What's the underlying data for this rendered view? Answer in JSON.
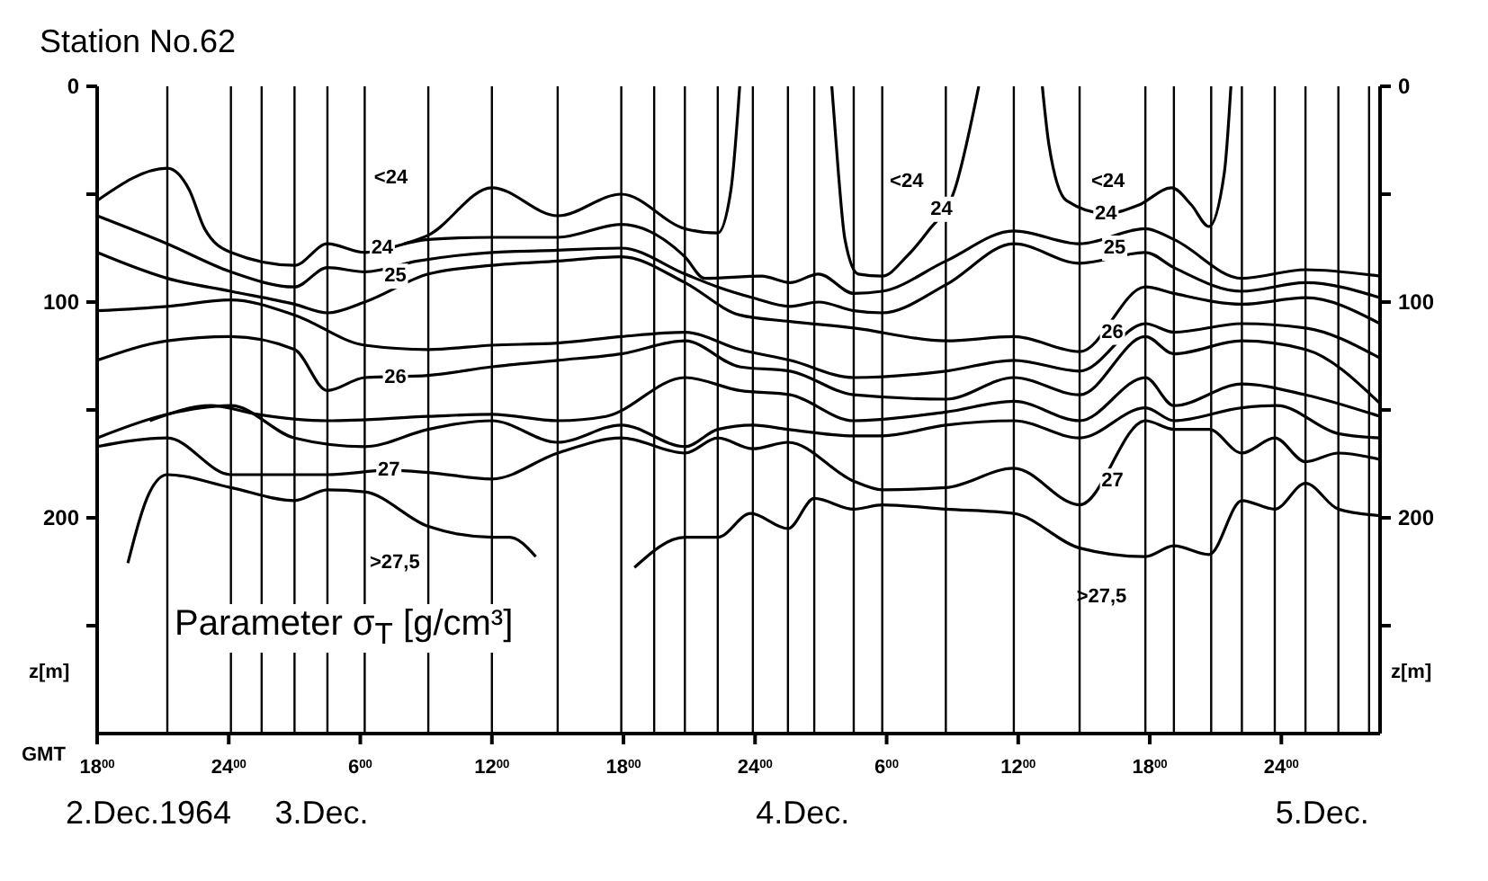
{
  "chart_data": {
    "type": "line",
    "title": "Station No.62",
    "xlabel": "GMT",
    "ylabel": "z[m]",
    "y2label": "z[m]",
    "marker": "none",
    "line_style": "solid",
    "xlim": [
      "1964-12-02T18:00",
      "1964-12-05T04:30"
    ],
    "xticks": [
      {
        "value": "1964-12-02T18:00",
        "label": "18$^{00}$"
      },
      {
        "value": "1964-12-03T00:00",
        "label": "24$^{00}$"
      },
      {
        "value": "1964-12-03T06:00",
        "label": "6$^{00}$"
      },
      {
        "value": "1964-12-03T12:00",
        "label": "12$^{00}$"
      },
      {
        "value": "1964-12-03T18:00",
        "label": "18$^{00}$"
      },
      {
        "value": "1964-12-04T00:00",
        "label": "24$^{00}$"
      },
      {
        "value": "1964-12-04T06:00",
        "label": "6$^{00}$"
      },
      {
        "value": "1964-12-04T12:00",
        "label": "12$^{00}$"
      },
      {
        "value": "1964-12-04T18:00",
        "label": "18$^{00}$"
      },
      {
        "value": "1964-12-05T00:00",
        "label": "24$^{00}$"
      }
    ],
    "ylim": [
      300,
      0
    ],
    "yticks": [
      0,
      {
        "value": 50,
        "label": null
      },
      100,
      {
        "value": 150,
        "label": null
      },
      200,
      {
        "value": 250,
        "label": null
      }
    ],
    "y2lim": [
      300,
      0
    ],
    "y2ticks": [
      0,
      {
        "value": 50,
        "label": null
      },
      100,
      {
        "value": 150,
        "label": null
      },
      200,
      {
        "value": 250,
        "label": null
      }
    ],
    "series": [
      {
        "color": "#000000",
        "x": [
          "1964-12-02T18:00",
          "1964-12-02T21:12",
          "1964-12-02T22:12",
          "1964-12-02T22:54",
          "1964-12-03T00:06",
          "1964-12-03T03:00",
          "1964-12-03T04:30",
          "1964-12-03T06:12",
          "1964-12-03T08:00",
          "1964-12-03T09:06",
          "1964-12-03T12:00",
          "1964-12-03T15:00",
          "1964-12-03T17:54",
          "1964-12-03T20:48",
          "1964-12-03T22:18",
          "1964-12-03T22:54",
          "1964-12-03T23:18"
        ],
        "values": [
          53,
          38,
          48,
          66,
          77,
          83,
          73,
          77,
          73,
          69,
          47,
          60,
          50,
          66,
          68,
          48,
          0
        ]
      },
      {
        "color": "#000000",
        "x": [
          "1964-12-04T03:30",
          "1964-12-04T03:48",
          "1964-12-04T04:06",
          "1964-12-04T04:42",
          "1964-12-04T05:48",
          "1964-12-04T06:54",
          "1964-12-04T07:54",
          "1964-12-04T09:06",
          "1964-12-04T10:12"
        ],
        "values": [
          0,
          40,
          71,
          87,
          88,
          79,
          67,
          48,
          0
        ]
      },
      {
        "color": "#000000",
        "x": [
          "1964-12-04T13:06",
          "1964-12-04T13:24",
          "1964-12-04T14:12",
          "1964-12-04T16:00",
          "1964-12-04T17:30",
          "1964-12-04T19:00",
          "1964-12-04T19:54",
          "1964-12-04T20:42",
          "1964-12-04T21:24",
          "1964-12-04T21:42"
        ],
        "values": [
          0,
          27,
          53,
          59,
          55,
          47,
          55,
          65,
          40,
          0
        ]
      },
      {
        "color": "#000000",
        "x": [
          "1964-12-03T08:00",
          "1964-12-03T09:06",
          "1964-12-03T12:00",
          "1964-12-03T15:00",
          "1964-12-03T17:54",
          "1964-12-03T20:48",
          "1964-12-03T21:42",
          "1964-12-04T00:18",
          "1964-12-04T01:36",
          "1964-12-04T02:54",
          "1964-12-04T04:30",
          "1964-12-04T05:48",
          "1964-12-04T08:42",
          "1964-12-04T11:48",
          "1964-12-04T14:48",
          "1964-12-04T17:48",
          "1964-12-04T19:06",
          "1964-12-04T22:12",
          "1964-12-05T01:06",
          "1964-12-05T04:30"
        ],
        "values": [
          73,
          71,
          70,
          70,
          64,
          79,
          89,
          88,
          91,
          87,
          96,
          95,
          81,
          67,
          73,
          66,
          71,
          89,
          85,
          88
        ]
      },
      {
        "color": "#000000",
        "x": [
          "1964-12-02T18:00",
          "1964-12-02T21:12",
          "1964-12-03T00:06",
          "1964-12-03T03:00",
          "1964-12-03T04:30",
          "1964-12-03T06:12",
          "1964-12-03T08:36",
          "1964-12-03T12:00",
          "1964-12-03T15:00",
          "1964-12-03T17:54",
          "1964-12-03T20:48",
          "1964-12-03T22:18",
          "1964-12-03T23:54",
          "1964-12-04T01:36",
          "1964-12-04T02:54",
          "1964-12-04T04:30",
          "1964-12-04T05:48",
          "1964-12-04T08:42",
          "1964-12-04T11:48",
          "1964-12-04T14:48",
          "1964-12-04T17:48",
          "1964-12-04T19:06",
          "1964-12-04T22:12",
          "1964-12-05T01:06",
          "1964-12-05T04:30"
        ],
        "values": [
          60,
          73,
          86,
          93,
          84,
          86,
          81,
          77,
          76,
          75,
          87,
          93,
          98,
          102,
          100,
          104,
          105,
          92,
          73,
          82,
          77,
          84,
          95,
          91,
          98
        ]
      },
      {
        "color": "#000000",
        "x": [
          "1964-12-02T18:00",
          "1964-12-02T21:12",
          "1964-12-03T00:06",
          "1964-12-03T03:00",
          "1964-12-03T04:30",
          "1964-12-03T06:12",
          "1964-12-03T09:06",
          "1964-12-03T12:00",
          "1964-12-03T15:00",
          "1964-12-03T17:54",
          "1964-12-03T20:48",
          "1964-12-03T23:18",
          "1964-12-04T01:36",
          "1964-12-04T04:30",
          "1964-12-04T08:42",
          "1964-12-04T11:48",
          "1964-12-04T14:48",
          "1964-12-04T17:48",
          "1964-12-04T19:06",
          "1964-12-04T22:12",
          "1964-12-05T01:06",
          "1964-12-05T04:30"
        ],
        "values": [
          77,
          89,
          95,
          101,
          105,
          100,
          87,
          83,
          81,
          79,
          91,
          106,
          109,
          112,
          118,
          116,
          123,
          93,
          96,
          101,
          98,
          110
        ]
      },
      {
        "color": "#000000",
        "x": [
          "1964-12-02T18:00",
          "1964-12-02T21:12",
          "1964-12-03T00:06",
          "1964-12-03T03:00",
          "1964-12-03T06:12",
          "1964-12-03T09:06",
          "1964-12-03T12:00",
          "1964-12-03T15:00",
          "1964-12-03T17:54",
          "1964-12-03T20:48",
          "1964-12-03T23:18",
          "1964-12-04T01:36",
          "1964-12-04T04:30",
          "1964-12-04T08:42",
          "1964-12-04T11:48",
          "1964-12-04T14:48",
          "1964-12-04T17:48",
          "1964-12-04T19:06",
          "1964-12-04T22:12",
          "1964-12-05T01:06",
          "1964-12-05T04:30"
        ],
        "values": [
          104,
          102,
          99,
          106,
          120,
          122,
          120,
          119,
          116,
          114,
          122,
          127,
          135,
          132,
          127,
          132,
          110,
          114,
          110,
          112,
          126
        ]
      },
      {
        "color": "#000000",
        "x": [
          "1964-12-02T18:00",
          "1964-12-02T21:12",
          "1964-12-03T00:06",
          "1964-12-03T03:00",
          "1964-12-03T04:30",
          "1964-12-03T06:12",
          "1964-12-03T09:06",
          "1964-12-03T12:00",
          "1964-12-03T15:00",
          "1964-12-03T17:54",
          "1964-12-03T20:48",
          "1964-12-03T23:18",
          "1964-12-04T01:36",
          "1964-12-04T04:30",
          "1964-12-04T08:42",
          "1964-12-04T11:48",
          "1964-12-04T14:48",
          "1964-12-04T17:48",
          "1964-12-04T19:06",
          "1964-12-04T22:12",
          "1964-12-05T01:06",
          "1964-12-05T04:30"
        ],
        "values": [
          127,
          118,
          116,
          122,
          141,
          135,
          134,
          130,
          127,
          124,
          118,
          130,
          132,
          143,
          145,
          135,
          143,
          116,
          124,
          118,
          122,
          147
        ]
      },
      {
        "color": "#000000",
        "x": [
          "1964-12-02T20:24",
          "1964-12-02T23:12",
          "1964-12-03T01:18",
          "1964-12-03T04:30",
          "1964-12-03T09:06",
          "1964-12-03T12:00",
          "1964-12-03T15:00",
          "1964-12-03T17:12",
          "1964-12-03T20:48",
          "1964-12-03T23:18",
          "1964-12-04T01:36",
          "1964-12-04T04:30",
          "1964-12-04T08:42",
          "1964-12-04T11:48",
          "1964-12-04T14:48",
          "1964-12-04T17:48",
          "1964-12-04T19:06",
          "1964-12-04T22:12",
          "1964-12-05T01:06",
          "1964-12-05T04:30"
        ],
        "values": [
          155,
          148,
          152,
          155,
          153,
          152,
          155,
          153,
          135,
          141,
          143,
          155,
          151,
          146,
          155,
          135,
          148,
          138,
          143,
          153
        ]
      },
      {
        "color": "#000000",
        "x": [
          "1964-12-02T18:00",
          "1964-12-02T21:12",
          "1964-12-03T00:06",
          "1964-12-03T03:00",
          "1964-12-03T06:12",
          "1964-12-03T09:06",
          "1964-12-03T12:00",
          "1964-12-03T15:00",
          "1964-12-03T17:54",
          "1964-12-03T20:48",
          "1964-12-03T22:18",
          "1964-12-03T23:54",
          "1964-12-04T01:30",
          "1964-12-04T04:30",
          "1964-12-04T05:48",
          "1964-12-04T08:42",
          "1964-12-04T11:48",
          "1964-12-04T14:48",
          "1964-12-04T17:48",
          "1964-12-04T19:06",
          "1964-12-04T22:12",
          "1964-12-04T23:48",
          "1964-12-05T02:36",
          "1964-12-05T04:30"
        ],
        "values": [
          163,
          152,
          148,
          163,
          167,
          159,
          155,
          165,
          157,
          167,
          159,
          157,
          159,
          162,
          162,
          157,
          155,
          163,
          149,
          155,
          149,
          148,
          161,
          163
        ]
      },
      {
        "color": "#000000",
        "x": [
          "1964-12-02T18:00",
          "1964-12-02T21:12",
          "1964-12-03T00:06",
          "1964-12-03T04:30",
          "1964-12-03T07:18",
          "1964-12-03T09:06",
          "1964-12-03T12:00",
          "1964-12-03T15:00",
          "1964-12-03T17:54",
          "1964-12-03T20:48",
          "1964-12-03T22:18",
          "1964-12-03T23:54",
          "1964-12-04T01:30",
          "1964-12-04T04:30",
          "1964-12-04T05:48",
          "1964-12-04T08:42",
          "1964-12-04T11:48",
          "1964-12-04T14:48",
          "1964-12-04T17:48",
          "1964-12-04T19:06",
          "1964-12-04T20:42",
          "1964-12-04T22:12",
          "1964-12-04T23:42",
          "1964-12-05T01:06",
          "1964-12-05T02:36",
          "1964-12-05T04:30"
        ],
        "values": [
          167,
          163,
          180,
          180,
          178,
          179,
          182,
          170,
          163,
          170,
          163,
          168,
          165,
          183,
          187,
          186,
          177,
          194,
          155,
          159,
          159,
          170,
          163,
          174,
          170,
          173
        ]
      },
      {
        "color": "#000000",
        "x": [
          "1964-12-02T19:24",
          "1964-12-02T20:24",
          "1964-12-02T21:12",
          "1964-12-03T00:06",
          "1964-12-03T03:00",
          "1964-12-03T04:30",
          "1964-12-03T06:12",
          "1964-12-03T09:06",
          "1964-12-03T12:00",
          "1964-12-03T12:48",
          "1964-12-03T14:00"
        ],
        "values": [
          221,
          188,
          180,
          186,
          192,
          187,
          188,
          204,
          209,
          209,
          218
        ]
      },
      {
        "color": "#000000",
        "x": [
          "1964-12-03T18:30",
          "1964-12-03T20:48",
          "1964-12-03T22:18",
          "1964-12-03T23:48",
          "1964-12-04T01:30",
          "1964-12-04T02:42",
          "1964-12-04T04:30",
          "1964-12-04T05:48",
          "1964-12-04T08:42",
          "1964-12-04T11:48",
          "1964-12-04T14:48",
          "1964-12-04T17:48",
          "1964-12-04T19:06",
          "1964-12-04T20:42",
          "1964-12-04T22:12",
          "1964-12-04T23:42",
          "1964-12-05T01:06",
          "1964-12-05T02:36",
          "1964-12-05T04:30"
        ],
        "values": [
          223,
          209,
          209,
          198,
          205,
          191,
          196,
          194,
          196,
          198,
          214,
          218,
          213,
          217,
          192,
          196,
          184,
          196,
          199
        ]
      }
    ],
    "ref_lines": [
      {
        "axis": "x",
        "value": "1964-12-02T21:12",
        "color": "#000000"
      },
      {
        "axis": "x",
        "value": "1964-12-03T00:06",
        "color": "#000000"
      },
      {
        "axis": "x",
        "value": "1964-12-03T01:30",
        "color": "#000000"
      },
      {
        "axis": "x",
        "value": "1964-12-03T03:00",
        "color": "#000000"
      },
      {
        "axis": "x",
        "value": "1964-12-03T04:30",
        "color": "#000000"
      },
      {
        "axis": "x",
        "value": "1964-12-03T06:12",
        "color": "#000000"
      },
      {
        "axis": "x",
        "value": "1964-12-03T09:06",
        "color": "#000000"
      },
      {
        "axis": "x",
        "value": "1964-12-03T12:00",
        "color": "#000000"
      },
      {
        "axis": "x",
        "value": "1964-12-03T15:00",
        "color": "#000000"
      },
      {
        "axis": "x",
        "value": "1964-12-03T17:54",
        "color": "#000000"
      },
      {
        "axis": "x",
        "value": "1964-12-03T19:24",
        "color": "#000000"
      },
      {
        "axis": "x",
        "value": "1964-12-03T20:48",
        "color": "#000000"
      },
      {
        "axis": "x",
        "value": "1964-12-03T22:18",
        "color": "#000000"
      },
      {
        "axis": "x",
        "value": "1964-12-03T23:54",
        "color": "#000000"
      },
      {
        "axis": "x",
        "value": "1964-12-04T01:30",
        "color": "#000000"
      },
      {
        "axis": "x",
        "value": "1964-12-04T02:42",
        "color": "#000000"
      },
      {
        "axis": "x",
        "value": "1964-12-04T04:30",
        "color": "#000000"
      },
      {
        "axis": "x",
        "value": "1964-12-04T05:48",
        "color": "#000000"
      },
      {
        "axis": "x",
        "value": "1964-12-04T08:42",
        "color": "#000000"
      },
      {
        "axis": "x",
        "value": "1964-12-04T11:48",
        "color": "#000000"
      },
      {
        "axis": "x",
        "value": "1964-12-04T14:48",
        "color": "#000000"
      },
      {
        "axis": "x",
        "value": "1964-12-04T17:48",
        "color": "#000000"
      },
      {
        "axis": "x",
        "value": "1964-12-04T19:06",
        "color": "#000000"
      },
      {
        "axis": "x",
        "value": "1964-12-04T20:48",
        "color": "#000000"
      },
      {
        "axis": "x",
        "value": "1964-12-04T22:12",
        "color": "#000000"
      },
      {
        "axis": "x",
        "value": "1964-12-04T23:42",
        "color": "#000000"
      },
      {
        "axis": "x",
        "value": "1964-12-05T01:06",
        "color": "#000000"
      },
      {
        "axis": "x",
        "value": "1964-12-05T02:36",
        "color": "#000000"
      },
      {
        "axis": "x",
        "value": "1964-12-05T04:00",
        "color": "#000000"
      }
    ],
    "annotations": [
      "Parameter σ$_{T}$ [g/cm³]",
      "2.Dec.1964",
      "3.Dec.",
      "4.Dec.",
      "5.Dec.",
      "<24",
      "<24",
      "<24",
      ">27,5",
      ">27,5",
      {
        "text": "24",
        "x": "1964-12-03T07:00",
        "y": 75
      },
      {
        "text": "25",
        "x": "1964-12-03T07:36",
        "y": 88
      },
      {
        "text": "26",
        "x": "1964-12-03T07:36",
        "y": 135
      },
      {
        "text": "27",
        "x": "1964-12-03T07:18",
        "y": 178
      },
      {
        "text": "24",
        "x": "1964-12-04T08:30",
        "y": 57
      },
      {
        "text": "24",
        "x": "1964-12-04T16:00",
        "y": 59
      },
      {
        "text": "25",
        "x": "1964-12-04T16:24",
        "y": 75
      },
      {
        "text": "26",
        "x": "1964-12-04T16:18",
        "y": 114
      },
      {
        "text": "27",
        "x": "1964-12-04T16:18",
        "y": 183
      }
    ]
  }
}
